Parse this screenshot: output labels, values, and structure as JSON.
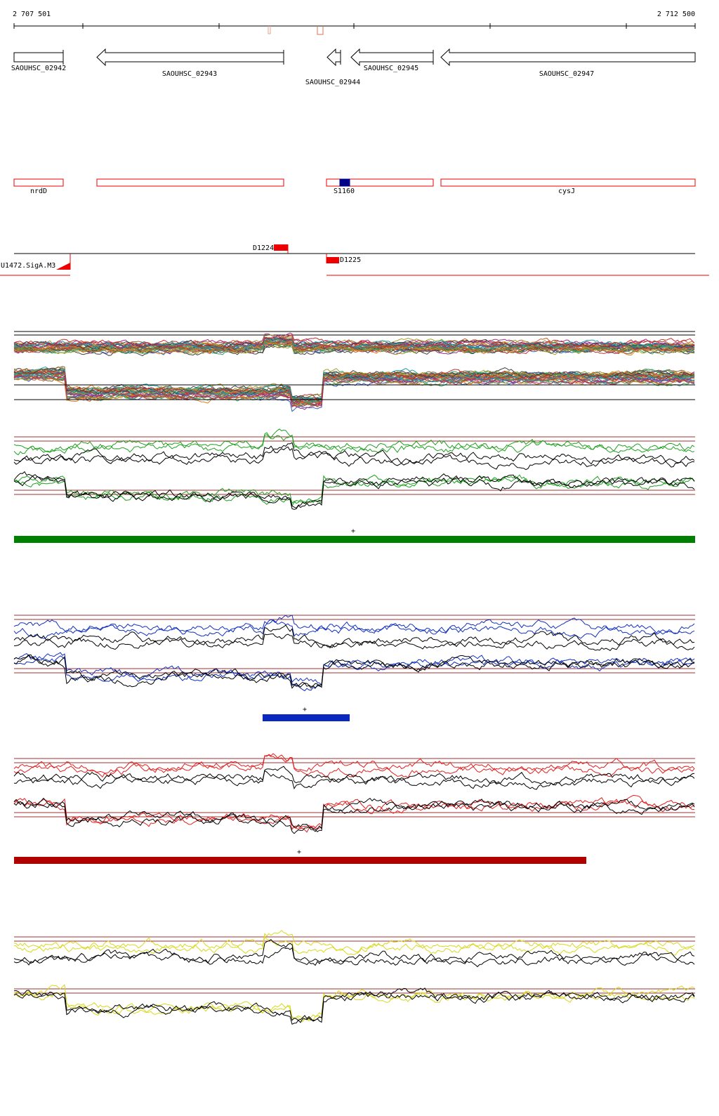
{
  "ruler": {
    "start": "2 707 501",
    "end": "2 712 500"
  },
  "genes": [
    {
      "label": "SAOUHSC_02942"
    },
    {
      "label": "SAOUHSC_02943"
    },
    {
      "label": "SAOUHSC_02944"
    },
    {
      "label": "SAOUHSC_02945"
    },
    {
      "label": "SAOUHSC_02947"
    }
  ],
  "features": [
    {
      "label": "nrdD"
    },
    {},
    {
      "label": "S1160"
    },
    {
      "label": "cysJ"
    }
  ],
  "promoters": [
    {
      "label": "D1224"
    },
    {
      "label": "D1225"
    },
    {
      "label": "U1472.SigA.M3"
    }
  ],
  "tracks": [
    {
      "marker": "+"
    },
    {
      "marker": "+"
    },
    {
      "marker": "+"
    }
  ]
}
